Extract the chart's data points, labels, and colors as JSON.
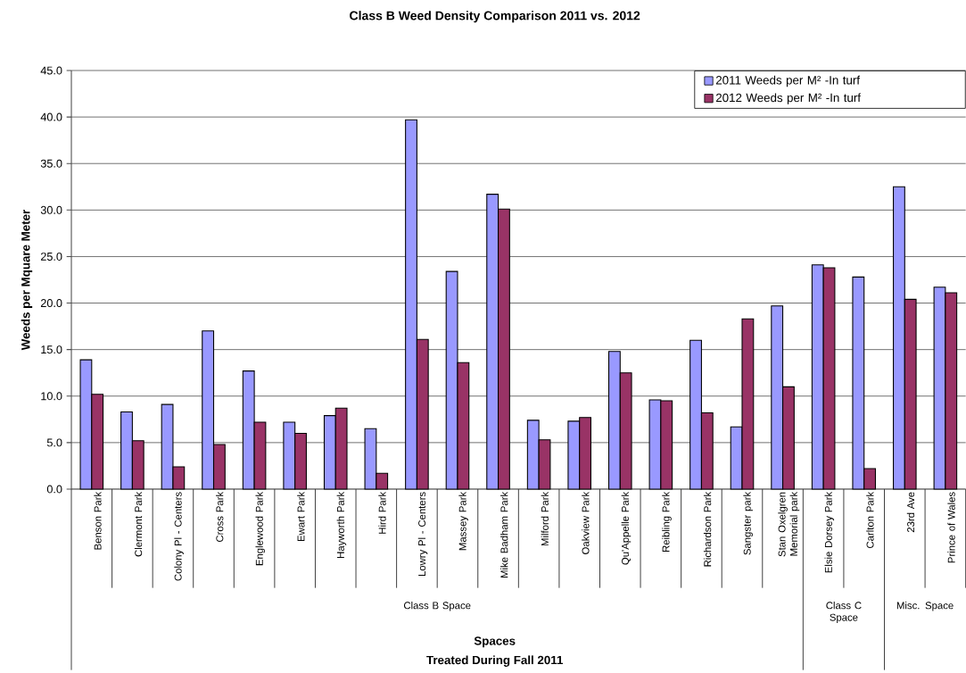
{
  "chart_data": {
    "type": "bar",
    "title": "Class B Weed Density Comparison 2011 vs. 2012",
    "xlabel": "Spaces",
    "ylabel": "Weeds per Mquare Meter",
    "categories": [
      "Benson Park",
      "Clermont Park",
      "Colony Pl - Centers",
      "Cross Park",
      "Englewood Park",
      "Ewart Park",
      "Hayworth Park",
      "Hird Park",
      "Lowry Pl - Centers",
      "Massey Park",
      "Mike Badham Park",
      "Milford Park",
      "Oakview Park",
      "Qu'Appelle Park",
      "Reibling Park",
      "Richardson Park",
      "Sangster park",
      "Stan Oxelgren Memorial park",
      "Elsie Dorsey Park",
      "Carlton Park",
      "23rd Ave",
      "Prince of Wales"
    ],
    "series": [
      {
        "name": "2011 Weeds per M² -In turf",
        "color": "#9999ff",
        "values": [
          13.9,
          8.3,
          9.1,
          17.0,
          12.7,
          7.2,
          7.9,
          6.5,
          39.7,
          23.4,
          31.7,
          7.4,
          7.3,
          14.8,
          9.6,
          16.0,
          6.7,
          19.7,
          24.1,
          22.8,
          32.5,
          21.7
        ]
      },
      {
        "name": "2012 Weeds per M² -In turf",
        "color": "#993366",
        "values": [
          10.2,
          5.2,
          2.4,
          4.8,
          7.2,
          6.0,
          8.7,
          1.7,
          16.1,
          13.6,
          30.1,
          5.3,
          7.7,
          12.5,
          9.5,
          8.2,
          18.3,
          11.0,
          23.8,
          2.2,
          20.4,
          21.1
        ]
      }
    ],
    "ylim": [
      0,
      45
    ],
    "yticks": [
      {
        "value": 0,
        "label": "0.0"
      },
      {
        "value": 5,
        "label": "5.0"
      },
      {
        "value": 10,
        "label": "10.0"
      },
      {
        "value": 15,
        "label": "15.0"
      },
      {
        "value": 20,
        "label": "20.0"
      },
      {
        "value": 25,
        "label": "25.0"
      },
      {
        "value": 30,
        "label": "30.0"
      },
      {
        "value": 35,
        "label": "35.0"
      },
      {
        "value": 40,
        "label": "40.0"
      },
      {
        "value": 45,
        "label": "45.0"
      }
    ],
    "grid": "y",
    "legend": "top right",
    "annotations": [
      "Class B Space",
      "Class C Space",
      "Misc. Space",
      "Treated During Fall 2011"
    ]
  }
}
